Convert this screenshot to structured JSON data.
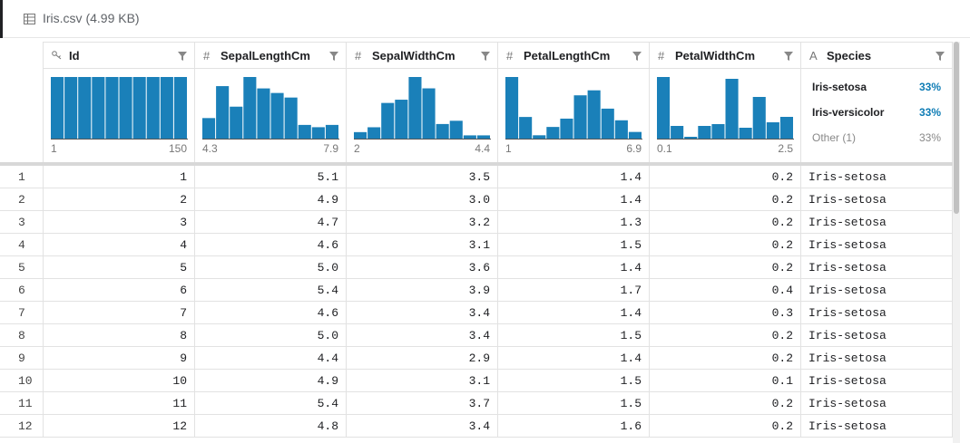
{
  "header": {
    "title": "Iris.csv (4.99 KB)"
  },
  "columns": [
    {
      "name": "Id",
      "histogram": {
        "counts": [
          15,
          15,
          15,
          15,
          15,
          15,
          15,
          15,
          15,
          15
        ],
        "min": 1,
        "max": 150
      }
    },
    {
      "name": "SepalLengthCm",
      "icon": "#",
      "histogram": {
        "counts": [
          9,
          23,
          14,
          27,
          22,
          20,
          18,
          6,
          5,
          6
        ],
        "min": 4.3,
        "max": 7.9
      }
    },
    {
      "name": "SepalWidthCm",
      "icon": "#",
      "histogram": {
        "counts": [
          4,
          7,
          22,
          24,
          38,
          31,
          9,
          11,
          2,
          2
        ],
        "min": 2,
        "max": 4.4
      }
    },
    {
      "name": "PetalLengthCm",
      "icon": "#",
      "histogram": {
        "counts": [
          37,
          13,
          2,
          7,
          12,
          26,
          29,
          18,
          11,
          4
        ],
        "min": 1,
        "max": 6.9
      }
    },
    {
      "name": "PetalWidthCm",
      "icon": "#",
      "histogram": {
        "counts": [
          34,
          7,
          1,
          7,
          8,
          33,
          6,
          23,
          9,
          12
        ],
        "min": 0.1,
        "max": 2.5
      }
    },
    {
      "name": "Species",
      "icon": "A",
      "summary": [
        {
          "label": "Iris-setosa",
          "share": "33%"
        },
        {
          "label": "Iris-versicolor",
          "share": "33%"
        },
        {
          "label": "Other (1)",
          "share": "33%"
        }
      ]
    }
  ],
  "table": {
    "rows": [
      [
        "1",
        "1",
        "5.1",
        "3.5",
        "1.4",
        "0.2",
        "Iris-setosa"
      ],
      [
        "2",
        "2",
        "4.9",
        "3.0",
        "1.4",
        "0.2",
        "Iris-setosa"
      ],
      [
        "3",
        "3",
        "4.7",
        "3.2",
        "1.3",
        "0.2",
        "Iris-setosa"
      ],
      [
        "4",
        "4",
        "4.6",
        "3.1",
        "1.5",
        "0.2",
        "Iris-setosa"
      ],
      [
        "5",
        "5",
        "5.0",
        "3.6",
        "1.4",
        "0.2",
        "Iris-setosa"
      ],
      [
        "6",
        "6",
        "5.4",
        "3.9",
        "1.7",
        "0.4",
        "Iris-setosa"
      ],
      [
        "7",
        "7",
        "4.6",
        "3.4",
        "1.4",
        "0.3",
        "Iris-setosa"
      ],
      [
        "8",
        "8",
        "5.0",
        "3.4",
        "1.5",
        "0.2",
        "Iris-setosa"
      ],
      [
        "9",
        "9",
        "4.4",
        "2.9",
        "1.4",
        "0.2",
        "Iris-setosa"
      ],
      [
        "10",
        "10",
        "4.9",
        "3.1",
        "1.5",
        "0.1",
        "Iris-setosa"
      ],
      [
        "11",
        "11",
        "5.4",
        "3.7",
        "1.5",
        "0.2",
        "Iris-setosa"
      ],
      [
        "12",
        "12",
        "4.8",
        "3.4",
        "1.6",
        "0.2",
        "Iris-setosa"
      ]
    ]
  }
}
